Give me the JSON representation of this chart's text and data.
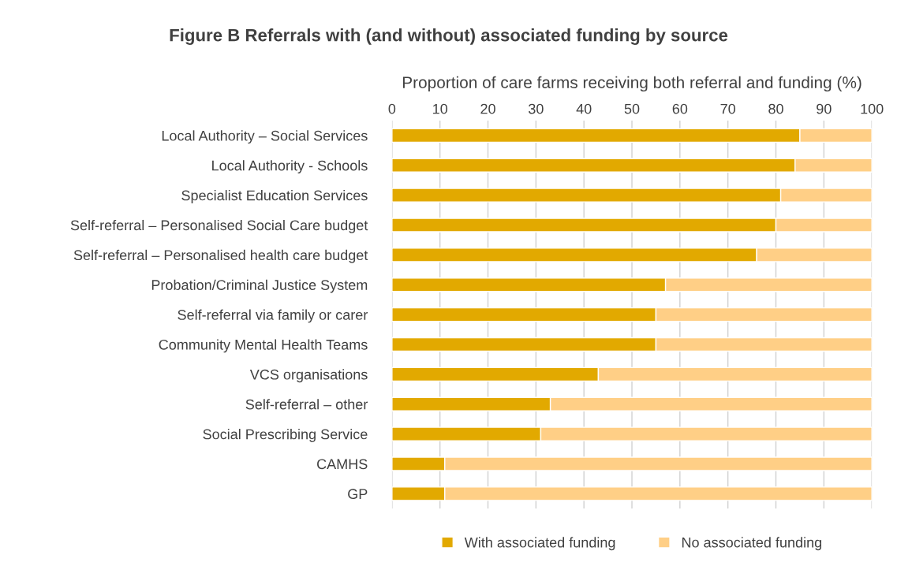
{
  "chart_data": {
    "type": "bar",
    "orientation": "horizontal",
    "stacked": true,
    "title": "Figure B Referrals with (and without) associated funding by source",
    "xlabel": "Proportion of care farms receiving both referral and funding (%)",
    "categories": [
      "Local Authority – Social Services",
      "Local Authority - Schools",
      "Specialist Education Services",
      "Self-referral – Personalised Social Care budget",
      "Self-referral – Personalised health care budget",
      "Probation/Criminal Justice System",
      "Self-referral via family or carer",
      "Community Mental Health Teams",
      "VCS organisations",
      "Self-referral – other",
      "Social Prescribing Service",
      "CAMHS",
      "GP"
    ],
    "series": [
      {
        "name": "With associated funding",
        "color": "#e2a900",
        "values": [
          85,
          84,
          81,
          80,
          76,
          57,
          55,
          55,
          43,
          33,
          31,
          11,
          11
        ]
      },
      {
        "name": "No associated funding",
        "color": "#ffcf86",
        "values": [
          15,
          16,
          19,
          20,
          24,
          43,
          45,
          45,
          57,
          67,
          69,
          89,
          89
        ]
      }
    ],
    "xlim": [
      0,
      100
    ],
    "xticks": [
      0,
      10,
      20,
      30,
      40,
      50,
      60,
      70,
      80,
      90,
      100
    ],
    "grid": "x",
    "legend": "bottom"
  }
}
